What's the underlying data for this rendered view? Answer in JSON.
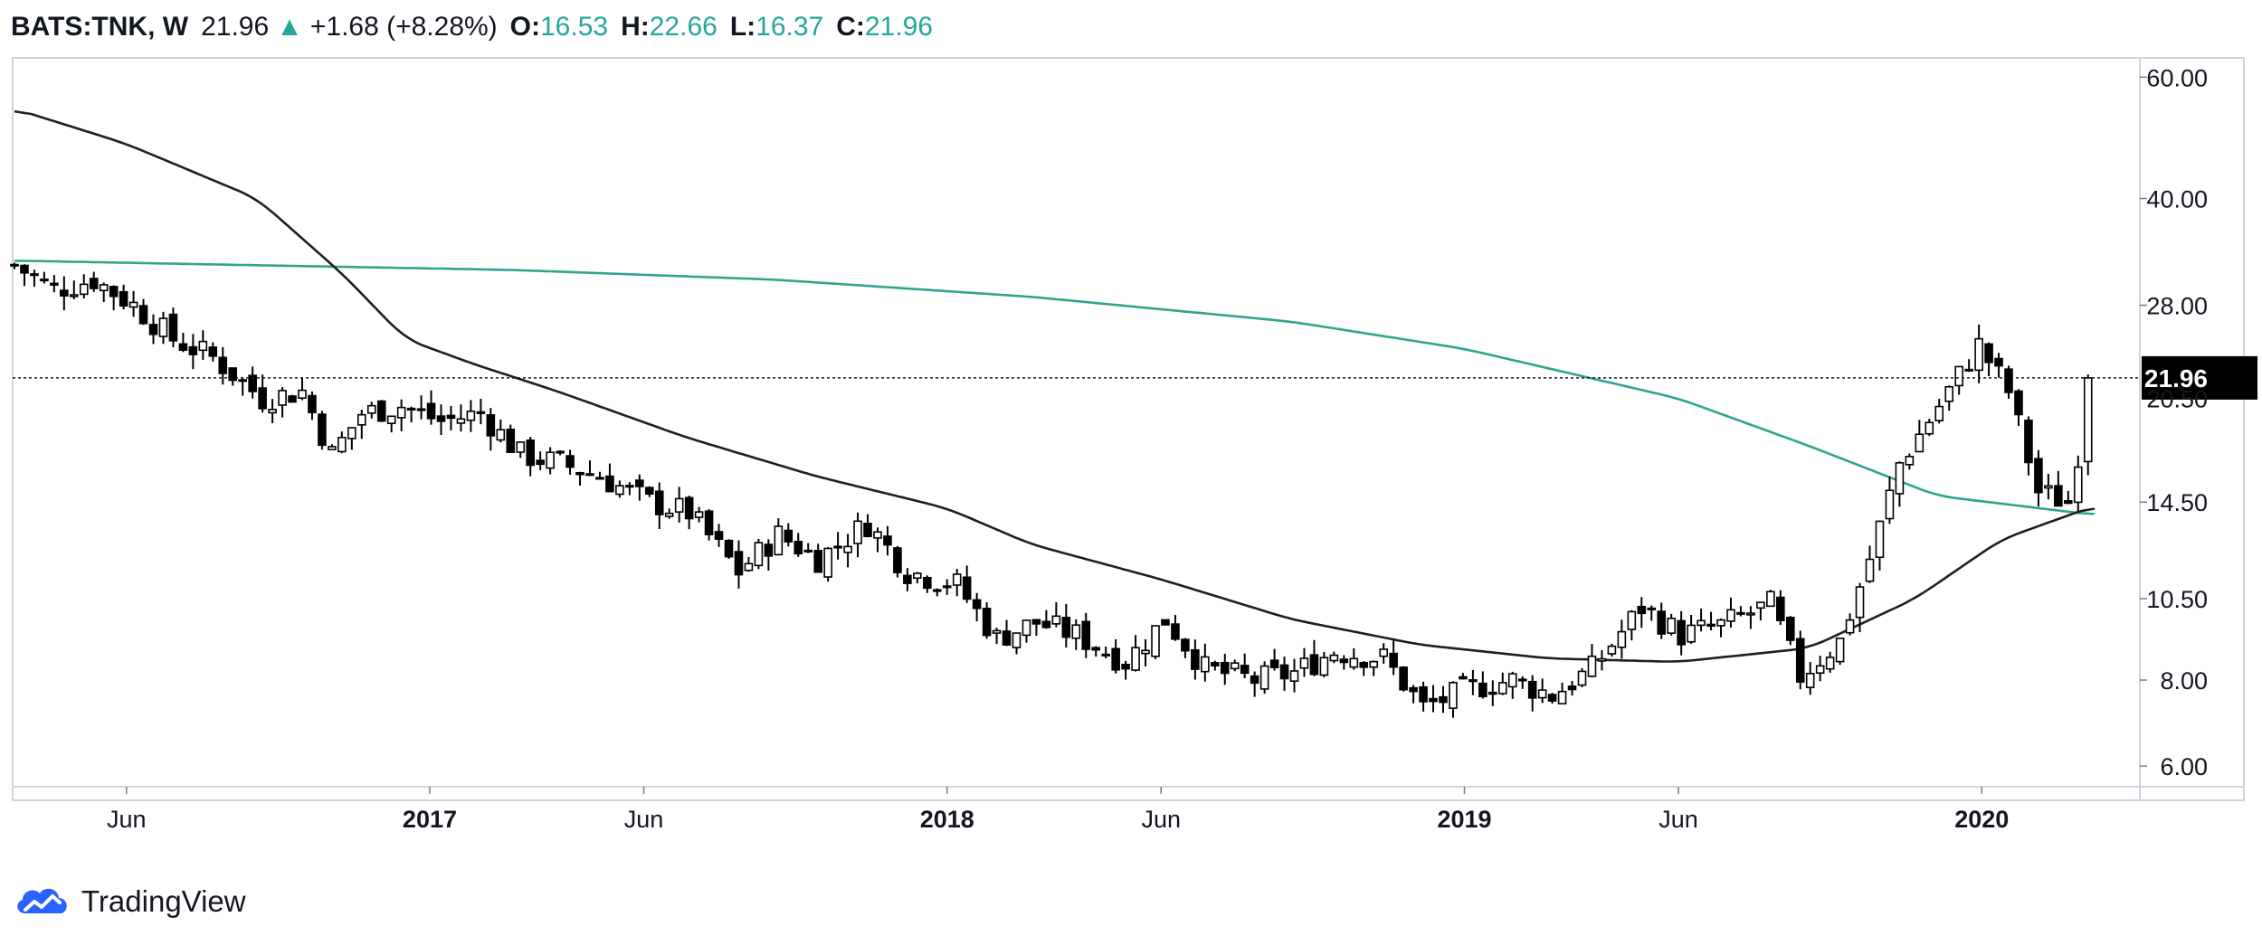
{
  "header": {
    "symbol": "BATS:TNK, W",
    "last": "21.96",
    "arrow": "▲",
    "change": "+1.68 (+8.28%)",
    "open_label": "O:",
    "open": "16.53",
    "high_label": "H:",
    "high": "22.66",
    "low_label": "L:",
    "low": "16.37",
    "close_label": "C:",
    "close": "21.96"
  },
  "colors": {
    "candle_up_body": "#ffffff",
    "candle_down_body": "#000000",
    "candle_wick": "#000000",
    "ma_fast": "#1f1f1f",
    "ma_slow": "#2fa58e",
    "price_line": "#131722",
    "price_label_bg": "#000000",
    "price_label_text": "#ffffff",
    "axis_text": "#131722",
    "border": "#d1d4dc",
    "logo_blue": "#2962ff"
  },
  "footer": {
    "brand": "TradingView",
    "logo_icon": "tradingview-cloud-icon"
  },
  "chart_data": {
    "type": "candlestick",
    "scale": "log",
    "interval": "weekly",
    "x_range": [
      "2016-03-14",
      "2020-03-20"
    ],
    "y_range": [
      5.6,
      64
    ],
    "y_ticks": [
      60.0,
      40.0,
      28.0,
      14.5,
      10.5,
      8.0,
      6.0
    ],
    "y_tick_labels": [
      "60.00",
      "40.00",
      "28.00",
      "14.50",
      "10.50",
      "8.00",
      "6.00"
    ],
    "hidden_tick_label": "20.50",
    "x_ticks": [
      {
        "date": "2016-06-01",
        "label": "Jun",
        "bold": false
      },
      {
        "date": "2017-01-01",
        "label": "2017",
        "bold": true
      },
      {
        "date": "2017-06-01",
        "label": "Jun",
        "bold": false
      },
      {
        "date": "2018-01-01",
        "label": "2018",
        "bold": true
      },
      {
        "date": "2018-06-01",
        "label": "Jun",
        "bold": false
      },
      {
        "date": "2019-01-01",
        "label": "2019",
        "bold": true
      },
      {
        "date": "2019-06-01",
        "label": "Jun",
        "bold": false
      },
      {
        "date": "2020-01-01",
        "label": "2020",
        "bold": true
      }
    ],
    "current_price": 21.96,
    "current_price_label": "21.96",
    "close_anchors": [
      [
        "2016-03-14",
        32.0
      ],
      [
        "2016-04-11",
        29.5
      ],
      [
        "2016-05-09",
        30.5
      ],
      [
        "2016-06-06",
        28.0
      ],
      [
        "2016-07-04",
        25.0
      ],
      [
        "2016-08-01",
        23.5
      ],
      [
        "2016-09-05",
        20.5
      ],
      [
        "2016-10-03",
        21.0
      ],
      [
        "2016-10-24",
        17.0
      ],
      [
        "2016-11-14",
        19.5
      ],
      [
        "2016-12-12",
        20.0
      ],
      [
        "2017-01-09",
        19.0
      ],
      [
        "2017-02-06",
        19.5
      ],
      [
        "2017-03-06",
        17.0
      ],
      [
        "2017-04-03",
        16.5
      ],
      [
        "2017-05-01",
        15.8
      ],
      [
        "2017-06-05",
        14.5
      ],
      [
        "2017-07-03",
        14.0
      ],
      [
        "2017-08-07",
        11.5
      ],
      [
        "2017-09-04",
        13.0
      ],
      [
        "2017-10-02",
        12.0
      ],
      [
        "2017-11-06",
        13.5
      ],
      [
        "2017-12-04",
        11.5
      ],
      [
        "2018-01-08",
        11.0
      ],
      [
        "2018-02-05",
        9.2
      ],
      [
        "2018-03-05",
        9.7
      ],
      [
        "2018-04-02",
        9.3
      ],
      [
        "2018-05-07",
        8.5
      ],
      [
        "2018-06-04",
        9.8
      ],
      [
        "2018-07-02",
        8.3
      ],
      [
        "2018-08-06",
        8.0
      ],
      [
        "2018-09-03",
        8.2
      ],
      [
        "2018-10-01",
        8.8
      ],
      [
        "2018-11-05",
        8.6
      ],
      [
        "2018-12-03",
        7.3
      ],
      [
        "2019-01-07",
        7.8
      ],
      [
        "2019-02-04",
        8.0
      ],
      [
        "2019-03-04",
        7.6
      ],
      [
        "2019-04-01",
        8.3
      ],
      [
        "2019-05-06",
        10.2
      ],
      [
        "2019-06-03",
        9.3
      ],
      [
        "2019-07-01",
        9.6
      ],
      [
        "2019-08-05",
        10.3
      ],
      [
        "2019-08-26",
        8.1
      ],
      [
        "2019-09-23",
        9.1
      ],
      [
        "2019-10-14",
        12.0
      ],
      [
        "2019-11-04",
        16.5
      ],
      [
        "2019-12-02",
        20.0
      ],
      [
        "2019-12-30",
        24.5
      ],
      [
        "2020-01-20",
        21.0
      ],
      [
        "2020-02-10",
        15.0
      ],
      [
        "2020-03-02",
        14.5
      ],
      [
        "2020-03-20",
        21.96
      ]
    ],
    "ma_fast_anchors": [
      [
        "2016-03-14",
        54
      ],
      [
        "2016-06-01",
        48
      ],
      [
        "2016-09-01",
        40
      ],
      [
        "2016-11-01",
        31
      ],
      [
        "2016-12-15",
        25
      ],
      [
        "2017-02-01",
        23
      ],
      [
        "2017-04-01",
        21
      ],
      [
        "2017-07-01",
        18
      ],
      [
        "2017-10-01",
        15.8
      ],
      [
        "2018-01-01",
        14.2
      ],
      [
        "2018-03-01",
        12.6
      ],
      [
        "2018-06-01",
        11.2
      ],
      [
        "2018-09-01",
        9.8
      ],
      [
        "2018-12-01",
        9.0
      ],
      [
        "2019-03-01",
        8.6
      ],
      [
        "2019-06-01",
        8.5
      ],
      [
        "2019-09-01",
        8.9
      ],
      [
        "2019-11-15",
        10.5
      ],
      [
        "2020-01-15",
        12.8
      ],
      [
        "2020-03-20",
        14.3
      ]
    ],
    "ma_slow_anchors": [
      [
        "2016-03-14",
        32.5
      ],
      [
        "2016-09-01",
        32.0
      ],
      [
        "2017-03-01",
        31.5
      ],
      [
        "2017-09-01",
        30.5
      ],
      [
        "2018-03-01",
        28.8
      ],
      [
        "2018-09-01",
        26.5
      ],
      [
        "2019-01-01",
        24.2
      ],
      [
        "2019-06-01",
        20.5
      ],
      [
        "2019-09-01",
        17.5
      ],
      [
        "2019-12-01",
        14.8
      ],
      [
        "2020-03-20",
        13.9
      ]
    ]
  }
}
